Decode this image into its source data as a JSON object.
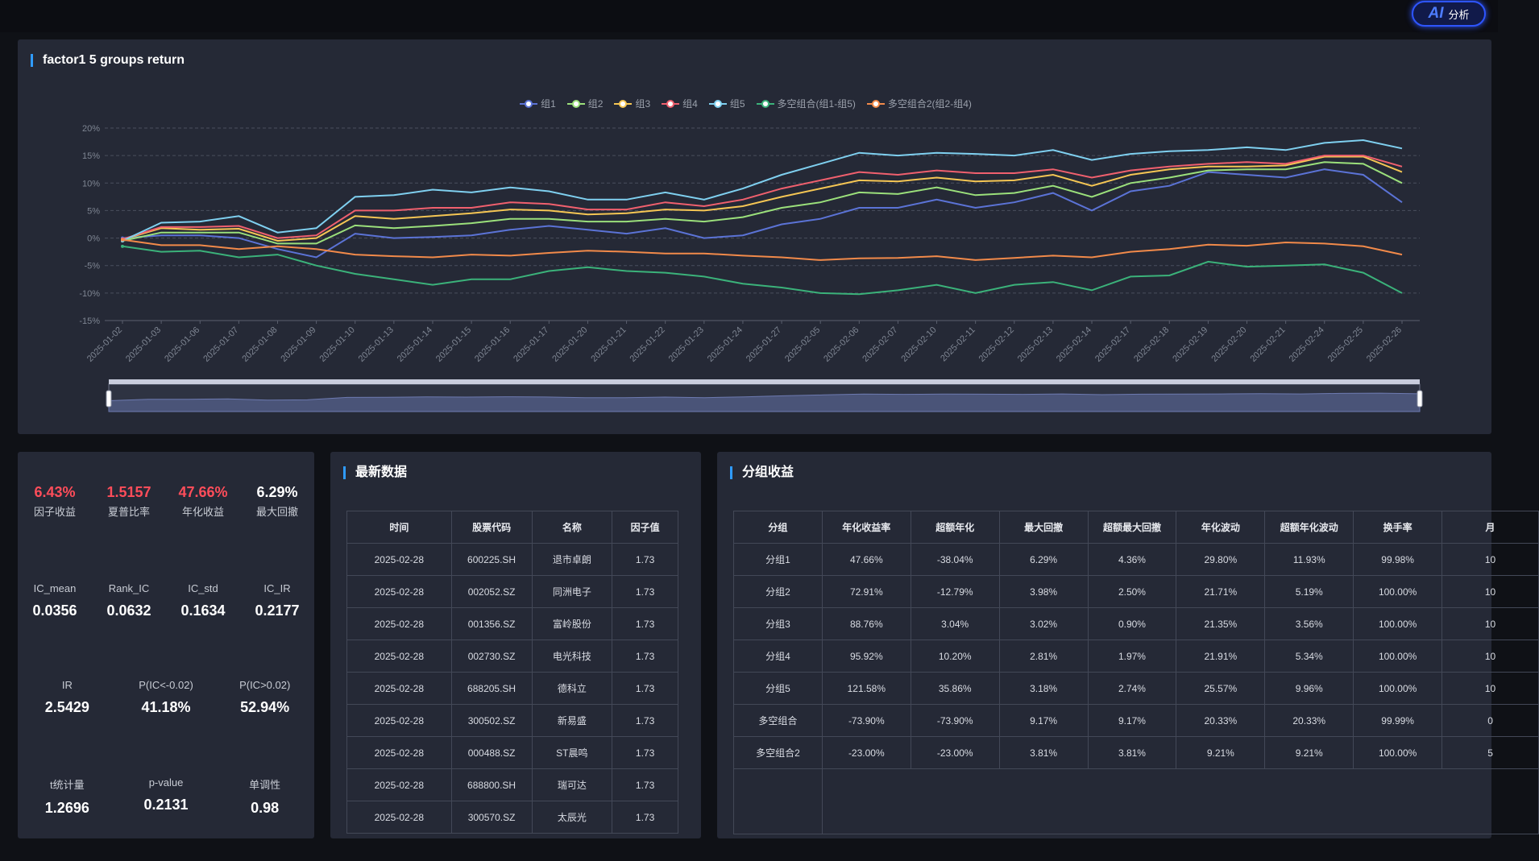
{
  "ai_button": {
    "icon": "AI",
    "label": "分析"
  },
  "chart": {
    "title": "factor1 5 groups return",
    "legend": [
      "组1",
      "组2",
      "组3",
      "组4",
      "组5",
      "多空组合(组1-组5)",
      "多空组合2(组2-组4)"
    ]
  },
  "chart_data": {
    "type": "line",
    "x": [
      "2025-01-02",
      "2025-01-03",
      "2025-01-06",
      "2025-01-07",
      "2025-01-08",
      "2025-01-09",
      "2025-01-10",
      "2025-01-13",
      "2025-01-14",
      "2025-01-15",
      "2025-01-16",
      "2025-01-17",
      "2025-01-20",
      "2025-01-21",
      "2025-01-22",
      "2025-01-23",
      "2025-01-24",
      "2025-01-27",
      "2025-02-05",
      "2025-02-06",
      "2025-02-07",
      "2025-02-10",
      "2025-02-11",
      "2025-02-12",
      "2025-02-13",
      "2025-02-14",
      "2025-02-17",
      "2025-02-18",
      "2025-02-19",
      "2025-02-20",
      "2025-02-21",
      "2025-02-24",
      "2025-02-25",
      "2025-02-26"
    ],
    "y_ticks": [
      "20%",
      "15%",
      "10%",
      "5%",
      "0%",
      "-5%",
      "-10%",
      "-15%"
    ],
    "ylim": [
      -15,
      20
    ],
    "grid": true,
    "legend_position": "top-center",
    "series": [
      {
        "name": "组1",
        "color": "#5b73d6",
        "values": [
          0,
          0.5,
          0.5,
          0,
          -2,
          -3.5,
          0.8,
          0,
          0.2,
          0.5,
          1.5,
          2.2,
          1.5,
          0.8,
          1.8,
          0,
          0.5,
          2.5,
          3.5,
          5.5,
          5.5,
          7,
          5.5,
          6.5,
          8.2,
          5,
          8.5,
          9.5,
          12,
          11.5,
          11,
          12.5,
          11.5,
          6.5
        ]
      },
      {
        "name": "组2",
        "color": "#9be07b",
        "values": [
          -0.5,
          1,
          1,
          1,
          -1,
          -1,
          2.3,
          1.8,
          2.2,
          2.7,
          3.5,
          3.5,
          3,
          3,
          3.5,
          3,
          3.8,
          5.5,
          6.5,
          8.3,
          8,
          9.2,
          7.8,
          8.2,
          9.5,
          7.5,
          10,
          11,
          12.3,
          12.5,
          12.5,
          13.8,
          13.5,
          10
        ]
      },
      {
        "name": "组3",
        "color": "#f5c654",
        "values": [
          -0.3,
          1.8,
          1.5,
          1.7,
          -0.5,
          0,
          4,
          3.5,
          4,
          4.5,
          5.2,
          5,
          4.3,
          4.5,
          5.2,
          5,
          5.8,
          7.5,
          9,
          10.5,
          10.3,
          11,
          10.3,
          10.5,
          11.5,
          9.5,
          11.5,
          12.5,
          13,
          13,
          13.2,
          14.8,
          14.8,
          12
        ]
      },
      {
        "name": "组4",
        "color": "#f0606e",
        "values": [
          -0.2,
          2,
          2,
          2.2,
          0,
          0.5,
          5,
          5,
          5.5,
          5.5,
          6.5,
          6.2,
          5.2,
          5.2,
          6.5,
          5.8,
          7,
          9,
          10.5,
          12,
          11.5,
          12.3,
          11.8,
          11.8,
          12.5,
          11,
          12.3,
          13,
          13.5,
          13.8,
          13.5,
          15,
          15,
          13
        ]
      },
      {
        "name": "组5",
        "color": "#7fd0f0",
        "values": [
          -0.5,
          2.8,
          3,
          4,
          1,
          1.8,
          7.5,
          7.8,
          8.8,
          8.3,
          9.2,
          8.5,
          7,
          7,
          8.3,
          7,
          9,
          11.5,
          13.5,
          15.5,
          15,
          15.5,
          15.3,
          15,
          16,
          14.2,
          15.3,
          15.8,
          16,
          16.5,
          16,
          17.3,
          17.8,
          16.3
        ]
      },
      {
        "name": "多空组合(组1-组5)",
        "color": "#3bb27a",
        "values": [
          -1.5,
          -2.5,
          -2.3,
          -3.5,
          -3,
          -5,
          -6.5,
          -7.5,
          -8.5,
          -7.5,
          -7.5,
          -6,
          -5.3,
          -6,
          -6.3,
          -7,
          -8.3,
          -9,
          -10,
          -10.2,
          -9.5,
          -8.5,
          -10,
          -8.5,
          -8,
          -9.5,
          -7,
          -6.8,
          -4.3,
          -5.2,
          -5,
          -4.8,
          -6.3,
          -10
        ]
      },
      {
        "name": "多空组合2(组2-组4)",
        "color": "#f28a4a",
        "values": [
          -0.3,
          -1.3,
          -1.3,
          -2,
          -1.5,
          -2,
          -3,
          -3.3,
          -3.5,
          -3,
          -3.2,
          -2.7,
          -2.3,
          -2.5,
          -2.8,
          -2.8,
          -3.2,
          -3.5,
          -4,
          -3.7,
          -3.6,
          -3.3,
          -4,
          -3.6,
          -3.2,
          -3.5,
          -2.5,
          -2,
          -1.2,
          -1.4,
          -0.8,
          -1,
          -1.5,
          -3
        ]
      }
    ]
  },
  "stats": {
    "row1": [
      {
        "value": "6.43%",
        "label": "因子收益"
      },
      {
        "value": "1.5157",
        "label": "夏普比率"
      },
      {
        "value": "47.66%",
        "label": "年化收益"
      },
      {
        "value": "6.29%",
        "label": "最大回撤"
      }
    ],
    "row2": [
      {
        "value": "0.0356",
        "label": "IC_mean"
      },
      {
        "value": "0.0632",
        "label": "Rank_IC"
      },
      {
        "value": "0.1634",
        "label": "IC_std"
      },
      {
        "value": "0.2177",
        "label": "IC_IR"
      }
    ],
    "row3": [
      {
        "value": "2.5429",
        "label": "IR"
      },
      {
        "value": "41.18%",
        "label": "P(IC<-0.02)"
      },
      {
        "value": "52.94%",
        "label": "P(IC>0.02)"
      }
    ],
    "row4": [
      {
        "value": "1.2696",
        "label": "t统计量"
      },
      {
        "value": "0.2131",
        "label": "p-value"
      },
      {
        "value": "0.98",
        "label": "单调性"
      }
    ]
  },
  "latest": {
    "title": "最新数据",
    "headers": [
      "时间",
      "股票代码",
      "名称",
      "因子值"
    ],
    "rows": [
      [
        "2025-02-28",
        "600225.SH",
        "退市卓朗",
        "1.73"
      ],
      [
        "2025-02-28",
        "002052.SZ",
        "同洲电子",
        "1.73"
      ],
      [
        "2025-02-28",
        "001356.SZ",
        "富岭股份",
        "1.73"
      ],
      [
        "2025-02-28",
        "002730.SZ",
        "电光科技",
        "1.73"
      ],
      [
        "2025-02-28",
        "688205.SH",
        "德科立",
        "1.73"
      ],
      [
        "2025-02-28",
        "300502.SZ",
        "新易盛",
        "1.73"
      ],
      [
        "2025-02-28",
        "000488.SZ",
        "ST晨鸣",
        "1.73"
      ],
      [
        "2025-02-28",
        "688800.SH",
        "瑞可达",
        "1.73"
      ],
      [
        "2025-02-28",
        "300570.SZ",
        "太辰光",
        "1.73"
      ]
    ]
  },
  "groups": {
    "title": "分组收益",
    "headers": [
      "分组",
      "年化收益率",
      "超额年化",
      "最大回撤",
      "超额最大回撤",
      "年化波动",
      "超额年化波动",
      "换手率",
      "月"
    ],
    "rows": [
      [
        "分组1",
        "47.66%",
        "-38.04%",
        "6.29%",
        "4.36%",
        "29.80%",
        "11.93%",
        "99.98%",
        "10"
      ],
      [
        "分组2",
        "72.91%",
        "-12.79%",
        "3.98%",
        "2.50%",
        "21.71%",
        "5.19%",
        "100.00%",
        "10"
      ],
      [
        "分组3",
        "88.76%",
        "3.04%",
        "3.02%",
        "0.90%",
        "21.35%",
        "3.56%",
        "100.00%",
        "10"
      ],
      [
        "分组4",
        "95.92%",
        "10.20%",
        "2.81%",
        "1.97%",
        "21.91%",
        "5.34%",
        "100.00%",
        "10"
      ],
      [
        "分组5",
        "121.58%",
        "35.86%",
        "3.18%",
        "2.74%",
        "25.57%",
        "9.96%",
        "100.00%",
        "10"
      ],
      [
        "多空组合",
        "-73.90%",
        "-73.90%",
        "9.17%",
        "9.17%",
        "20.33%",
        "20.33%",
        "99.99%",
        "0"
      ],
      [
        "多空组合2",
        "-23.00%",
        "-23.00%",
        "3.81%",
        "3.81%",
        "9.21%",
        "9.21%",
        "100.00%",
        "5"
      ]
    ]
  }
}
